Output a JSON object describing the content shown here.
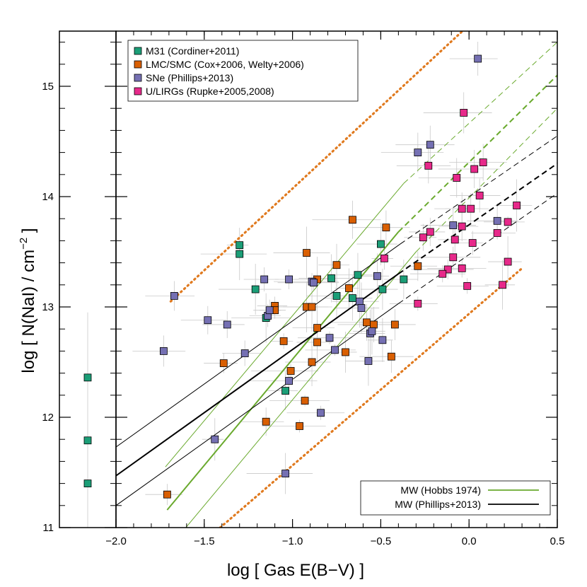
{
  "chart_data": {
    "type": "scatter",
    "xlabel": "log [ Gas E(B−V) ]",
    "ylabel_main": "log [ N(NaI) / cm",
    "ylabel_sup": "−2",
    "ylabel_end": " ]",
    "xlim": [
      -2.0,
      0.5
    ],
    "ylim": [
      11.0,
      15.5
    ],
    "x_ticks": [
      -2.0,
      -1.5,
      -1.0,
      -0.5,
      0.0,
      0.5
    ],
    "x_tick_labels": [
      "−2.0",
      "−1.5",
      "−1.0",
      "−0.5",
      "0.0",
      "0.5"
    ],
    "y_ticks": [
      11,
      12,
      13,
      14,
      15
    ],
    "y_tick_labels": [
      "11",
      "12",
      "13",
      "14",
      "15"
    ],
    "grid": false,
    "legend_placement": "top-left",
    "lines_legend_placement": "bottom-right",
    "series": [
      {
        "name": "M31 (Cordiner+2011)",
        "color": "#1b9e77",
        "points": [
          [
            -1.3,
            13.56
          ],
          [
            -1.3,
            13.48
          ],
          [
            -1.21,
            13.16
          ],
          [
            -1.15,
            12.9
          ],
          [
            -0.78,
            13.26
          ],
          [
            -0.75,
            13.1
          ],
          [
            -0.66,
            13.08
          ],
          [
            -0.63,
            13.29
          ],
          [
            -0.5,
            13.57
          ],
          [
            -0.49,
            13.16
          ],
          [
            -0.37,
            13.25
          ],
          [
            -1.04,
            12.24
          ]
        ]
      },
      {
        "name": "LMC/SMC (Cox+2006, Welty+2006)",
        "color": "#d95f02",
        "points": [
          [
            -1.71,
            11.3
          ],
          [
            -1.39,
            12.49
          ],
          [
            -1.1,
            13.01
          ],
          [
            -1.1,
            12.97
          ],
          [
            -1.05,
            12.69
          ],
          [
            -1.01,
            12.42
          ],
          [
            -0.96,
            11.92
          ],
          [
            -0.93,
            12.15
          ],
          [
            -0.92,
            13.49
          ],
          [
            -0.92,
            13.0
          ],
          [
            -0.89,
            13.0
          ],
          [
            -0.89,
            12.5
          ],
          [
            -0.86,
            12.81
          ],
          [
            -0.86,
            13.25
          ],
          [
            -0.86,
            12.68
          ],
          [
            -0.75,
            13.38
          ],
          [
            -0.7,
            12.59
          ],
          [
            -0.68,
            13.17
          ],
          [
            -0.66,
            13.79
          ],
          [
            -0.58,
            12.86
          ],
          [
            -0.54,
            12.84
          ],
          [
            -0.47,
            13.72
          ],
          [
            -0.44,
            12.55
          ],
          [
            -0.42,
            12.84
          ],
          [
            -0.29,
            13.37
          ],
          [
            -1.15,
            11.96
          ]
        ]
      },
      {
        "name": "SNe (Phillips+2013)",
        "color": "#7570b3",
        "points": [
          [
            -1.73,
            12.6
          ],
          [
            -1.67,
            13.1
          ],
          [
            -1.48,
            12.88
          ],
          [
            -1.37,
            12.84
          ],
          [
            -1.27,
            12.58
          ],
          [
            -1.16,
            13.25
          ],
          [
            -1.14,
            12.92
          ],
          [
            -1.13,
            12.97
          ],
          [
            -1.02,
            13.25
          ],
          [
            -1.02,
            12.33
          ],
          [
            -0.89,
            13.23
          ],
          [
            -0.88,
            13.22
          ],
          [
            -0.84,
            12.04
          ],
          [
            -0.79,
            12.72
          ],
          [
            -0.76,
            12.61
          ],
          [
            -0.62,
            13.05
          ],
          [
            -0.61,
            12.99
          ],
          [
            -0.57,
            12.51
          ],
          [
            -0.56,
            12.76
          ],
          [
            -0.55,
            12.78
          ],
          [
            -0.52,
            13.28
          ],
          [
            -0.49,
            12.7
          ],
          [
            -1.44,
            11.8
          ],
          [
            -1.04,
            11.49
          ],
          [
            -0.29,
            14.4
          ],
          [
            -0.22,
            14.47
          ],
          [
            -0.09,
            13.74
          ],
          [
            0.16,
            13.78
          ],
          [
            0.05,
            15.25
          ]
        ]
      },
      {
        "name": "U/LIRGs (Rupke+2005,2008)",
        "color": "#e7298a",
        "points": [
          [
            -0.03,
            14.76
          ],
          [
            -0.07,
            14.17
          ],
          [
            0.03,
            14.25
          ],
          [
            0.08,
            14.31
          ],
          [
            -0.23,
            14.28
          ],
          [
            0.06,
            14.01
          ],
          [
            -0.04,
            13.89
          ],
          [
            0.01,
            13.89
          ],
          [
            -0.04,
            13.73
          ],
          [
            -0.22,
            13.68
          ],
          [
            -0.26,
            13.63
          ],
          [
            -0.08,
            13.61
          ],
          [
            0.02,
            13.58
          ],
          [
            -0.48,
            13.44
          ],
          [
            -0.09,
            13.45
          ],
          [
            -0.12,
            13.34
          ],
          [
            -0.04,
            13.35
          ],
          [
            -0.15,
            13.3
          ],
          [
            -0.01,
            13.19
          ],
          [
            -0.29,
            13.03
          ],
          [
            0.16,
            13.67
          ],
          [
            0.22,
            13.77
          ],
          [
            0.27,
            13.92
          ],
          [
            0.22,
            13.41
          ],
          [
            0.19,
            13.2
          ]
        ]
      }
    ],
    "lines": [
      {
        "name": "MW (Hobbs 1974)",
        "color": "#6aaa2e",
        "solid": [
          [
            [
              -1.71,
              11.16
            ],
            [
              -0.4,
              13.68
            ]
          ],
          [
            [
              -1.71,
              11.16
            ],
            [
              -0.4,
              13.68
            ]
          ],
          [
            [
              -1.72,
              11.55
            ],
            [
              -0.37,
              14.12
            ]
          ],
          [
            [
              -1.62,
              10.97
            ],
            [
              -0.3,
              13.5
            ]
          ]
        ],
        "dashed": [
          [
            [
              -0.4,
              13.68
            ],
            [
              0.5,
              15.1
            ]
          ],
          [
            [
              -0.37,
              14.12
            ],
            [
              0.5,
              15.4
            ]
          ],
          [
            [
              -0.3,
              13.5
            ],
            [
              0.5,
              14.8
            ]
          ]
        ]
      },
      {
        "name": "MW (Phillips+2013)",
        "color": "#000000",
        "solid": [
          [
            [
              -2.0,
              11.47
            ],
            [
              -0.4,
              13.3
            ]
          ],
          [
            [
              -2.0,
              11.73
            ],
            [
              -0.39,
              13.57
            ]
          ],
          [
            [
              -2.0,
              11.2
            ],
            [
              -0.4,
              13.03
            ]
          ]
        ],
        "dashed": [
          [
            [
              -0.4,
              13.3
            ],
            [
              0.5,
              14.3
            ]
          ],
          [
            [
              -0.39,
              13.57
            ],
            [
              0.5,
              14.55
            ]
          ],
          [
            [
              -0.4,
              13.03
            ],
            [
              0.5,
              14.03
            ]
          ]
        ]
      }
    ],
    "envelope": {
      "color": "#e07a1f",
      "lines": [
        [
          [
            -1.69,
            13.05
          ],
          [
            0.3,
            16.0
          ]
        ],
        [
          [
            -1.41,
            11.0
          ],
          [
            0.3,
            13.35
          ]
        ]
      ]
    },
    "left_panel": {
      "series": "M31 (Cordiner+2011)",
      "points": [
        12.36,
        11.79,
        11.4
      ]
    }
  }
}
